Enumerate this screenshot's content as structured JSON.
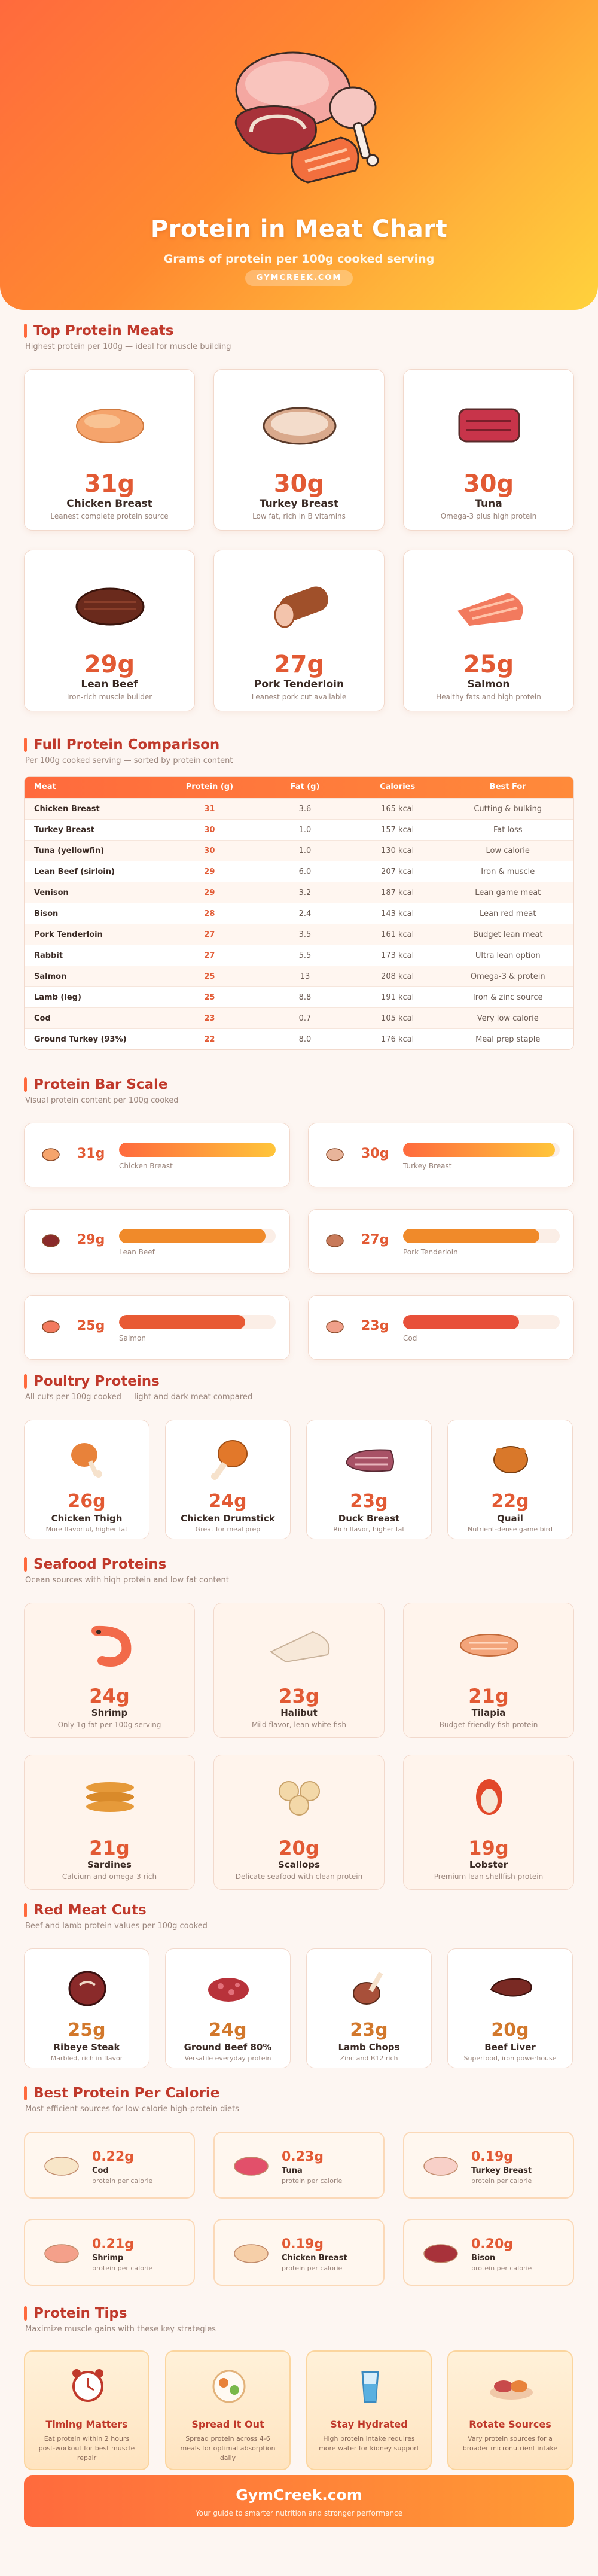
{
  "hero": {
    "title": "Protein in Meat Chart",
    "subtitle": "Grams of protein per 100g cooked serving",
    "brand": "GYMCREEK.COM"
  },
  "colors": {
    "accent": "#ff6a3d",
    "title_red": "#c0392b",
    "value_orange": "#e25a34"
  },
  "top": {
    "title": "Top Protein Meats",
    "sub": "Highest protein per 100g — ideal for muscle building",
    "cards": [
      {
        "value": "31g",
        "name": "Chicken Breast",
        "desc": "Leanest complete protein source",
        "icon": "chicken-breast-icon"
      },
      {
        "value": "30g",
        "name": "Turkey Breast",
        "desc": "Low fat, rich in B vitamins",
        "icon": "turkey-breast-icon"
      },
      {
        "value": "30g",
        "name": "Tuna",
        "desc": "Omega-3 plus high protein",
        "icon": "tuna-steak-icon"
      },
      {
        "value": "29g",
        "name": "Lean Beef",
        "desc": "Iron-rich muscle builder",
        "icon": "beef-steak-icon"
      },
      {
        "value": "27g",
        "name": "Pork Tenderloin",
        "desc": "Leanest pork cut available",
        "icon": "pork-roll-icon"
      },
      {
        "value": "25g",
        "name": "Salmon",
        "desc": "Healthy fats and high protein",
        "icon": "salmon-fillet-icon"
      }
    ]
  },
  "table": {
    "title": "Full Protein Comparison",
    "sub": "Per 100g cooked serving — sorted by protein content",
    "headers": [
      "Meat",
      "Protein (g)",
      "Fat (g)",
      "Calories",
      "Best For"
    ],
    "rows": [
      [
        "Chicken Breast",
        "31",
        "3.6",
        "165 kcal",
        "Cutting & bulking"
      ],
      [
        "Turkey Breast",
        "30",
        "1.0",
        "157 kcal",
        "Fat loss"
      ],
      [
        "Tuna (yellowfin)",
        "30",
        "1.0",
        "130 kcal",
        "Low calorie"
      ],
      [
        "Lean Beef (sirloin)",
        "29",
        "6.0",
        "207 kcal",
        "Iron & muscle"
      ],
      [
        "Venison",
        "29",
        "3.2",
        "187 kcal",
        "Lean game meat"
      ],
      [
        "Bison",
        "28",
        "2.4",
        "143 kcal",
        "Lean red meat"
      ],
      [
        "Pork Tenderloin",
        "27",
        "3.5",
        "161 kcal",
        "Budget lean meat"
      ],
      [
        "Rabbit",
        "27",
        "5.5",
        "173 kcal",
        "Ultra lean option"
      ],
      [
        "Salmon",
        "25",
        "13",
        "208 kcal",
        "Omega-3 & protein"
      ],
      [
        "Lamb (leg)",
        "25",
        "8.8",
        "191 kcal",
        "Iron & zinc source"
      ],
      [
        "Cod",
        "23",
        "0.7",
        "105 kcal",
        "Very low calorie"
      ],
      [
        "Ground Turkey (93%)",
        "22",
        "8.0",
        "176 kcal",
        "Meal prep staple"
      ]
    ]
  },
  "bars": {
    "title": "Protein Bar Scale",
    "sub": "Visual protein content per 100g cooked",
    "max": 31,
    "items": [
      {
        "value": "31g",
        "amount": 31,
        "label": "Chicken Breast",
        "icon": "chicken-breast-icon"
      },
      {
        "value": "30g",
        "amount": 30,
        "label": "Turkey Breast",
        "icon": "turkey-breast-icon"
      },
      {
        "value": "29g",
        "amount": 29,
        "label": "Lean Beef",
        "icon": "beef-steak-icon"
      },
      {
        "value": "27g",
        "amount": 27,
        "label": "Pork Tenderloin",
        "icon": "pork-roll-icon"
      },
      {
        "value": "25g",
        "amount": 25,
        "label": "Salmon",
        "icon": "salmon-fillet-icon"
      },
      {
        "value": "23g",
        "amount": 23,
        "label": "Cod",
        "icon": "cod-fillet-icon"
      }
    ]
  },
  "poultry": {
    "title": "Poultry Proteins",
    "sub": "All cuts per 100g cooked — light and dark meat compared",
    "cards": [
      {
        "value": "26g",
        "name": "Chicken Thigh",
        "desc": "More flavorful, higher fat",
        "icon": "chicken-thigh-icon"
      },
      {
        "value": "24g",
        "name": "Chicken Drumstick",
        "desc": "Great for meal prep",
        "icon": "drumstick-icon"
      },
      {
        "value": "23g",
        "name": "Duck Breast",
        "desc": "Rich flavor, higher fat",
        "icon": "duck-breast-icon"
      },
      {
        "value": "22g",
        "name": "Quail",
        "desc": "Nutrient-dense game bird",
        "icon": "quail-icon"
      }
    ]
  },
  "seafood": {
    "title": "Seafood Proteins",
    "sub": "Ocean sources with high protein and low fat content",
    "cards": [
      {
        "value": "24g",
        "name": "Shrimp",
        "desc": "Only 1g fat per 100g serving",
        "icon": "shrimp-icon"
      },
      {
        "value": "23g",
        "name": "Halibut",
        "desc": "Mild flavor, lean white fish",
        "icon": "halibut-icon"
      },
      {
        "value": "21g",
        "name": "Tilapia",
        "desc": "Budget-friendly fish protein",
        "icon": "tilapia-icon"
      },
      {
        "value": "21g",
        "name": "Sardines",
        "desc": "Calcium and omega-3 rich",
        "icon": "sardines-icon"
      },
      {
        "value": "20g",
        "name": "Scallops",
        "desc": "Delicate seafood with clean protein",
        "icon": "scallops-icon"
      },
      {
        "value": "19g",
        "name": "Lobster",
        "desc": "Premium lean shellfish protein",
        "icon": "lobster-icon"
      }
    ]
  },
  "redmeat": {
    "title": "Red Meat Cuts",
    "sub": "Beef and lamb protein values per 100g cooked",
    "cards": [
      {
        "value": "25g",
        "name": "Ribeye Steak",
        "desc": "Marbled, rich in flavor",
        "icon": "ribeye-icon"
      },
      {
        "value": "24g",
        "name": "Ground Beef 80%",
        "desc": "Versatile everyday protein",
        "icon": "ground-beef-icon"
      },
      {
        "value": "23g",
        "name": "Lamb Chops",
        "desc": "Zinc and B12 rich",
        "icon": "lamb-chop-icon"
      },
      {
        "value": "20g",
        "name": "Beef Liver",
        "desc": "Superfood, iron powerhouse",
        "icon": "liver-icon"
      }
    ]
  },
  "percal": {
    "title": "Best Protein Per Calorie",
    "sub": "Most efficient sources for low-calorie high-protein diets",
    "cards": [
      {
        "value": "0.22g",
        "name": "Cod",
        "desc": "protein per calorie",
        "icon": "cod-fillet-icon"
      },
      {
        "value": "0.23g",
        "name": "Tuna",
        "desc": "protein per calorie",
        "icon": "tuna-steak-icon"
      },
      {
        "value": "0.19g",
        "name": "Turkey Breast",
        "desc": "protein per calorie",
        "icon": "turkey-breast-icon"
      },
      {
        "value": "0.21g",
        "name": "Shrimp",
        "desc": "protein per calorie",
        "icon": "shrimp-icon"
      },
      {
        "value": "0.19g",
        "name": "Chicken Breast",
        "desc": "protein per calorie",
        "icon": "chicken-breast-icon"
      },
      {
        "value": "0.20g",
        "name": "Bison",
        "desc": "protein per calorie",
        "icon": "bison-steak-icon"
      }
    ]
  },
  "tips": {
    "title": "Protein Tips",
    "sub": "Maximize muscle gains with these key strategies",
    "cards": [
      {
        "name": "Timing Matters",
        "desc": "Eat protein within 2 hours post-workout for best muscle repair",
        "icon": "alarm-clock-icon"
      },
      {
        "name": "Spread It Out",
        "desc": "Spread protein across 4-6 meals for optimal absorption daily",
        "icon": "meal-plate-icon"
      },
      {
        "name": "Stay Hydrated",
        "desc": "High protein intake requires more water for kidney support",
        "icon": "water-glass-icon"
      },
      {
        "name": "Rotate Sources",
        "desc": "Vary protein sources for a broader micronutrient intake",
        "icon": "meat-platter-icon"
      }
    ]
  },
  "footer": {
    "brand": "GymCreek.com",
    "tagline": "Your guide to smarter nutrition and stronger performance"
  }
}
